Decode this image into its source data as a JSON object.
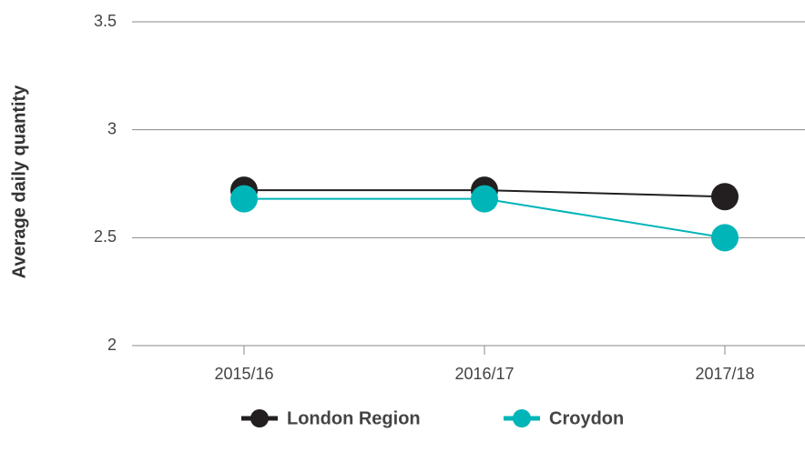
{
  "chart_data": {
    "type": "line",
    "y_label": "Average daily quantity",
    "categories": [
      "2015/16",
      "2016/17",
      "2017/18"
    ],
    "series": [
      {
        "name": "London Region",
        "color": "#231f20",
        "values": [
          2.72,
          2.72,
          2.69
        ]
      },
      {
        "name": "Croydon",
        "color": "#00b5b8",
        "values": [
          2.68,
          2.68,
          2.5
        ]
      }
    ],
    "ylim": [
      2,
      3.5
    ],
    "yticks": [
      2,
      2.5,
      3,
      3.5
    ],
    "grid": true,
    "legend": "bottom"
  }
}
